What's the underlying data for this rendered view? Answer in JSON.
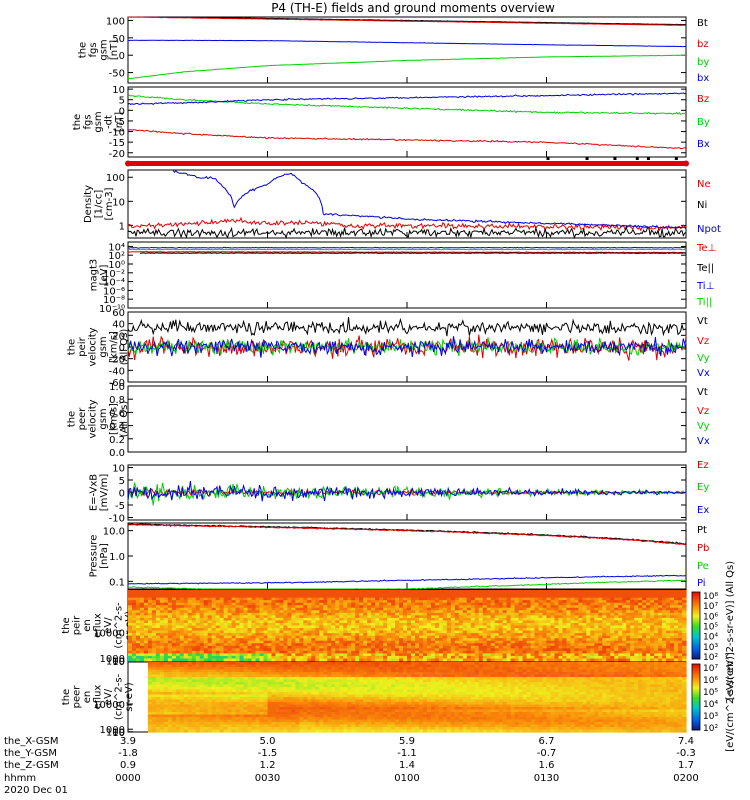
{
  "title": "P4 (TH-E) fields and ground moments overview",
  "colors": {
    "black": "#000000",
    "red": "#e00000",
    "green": "#00d000",
    "blue": "#0000e0"
  },
  "chart_data": [
    {
      "type": "line",
      "panel": "fgs_gsm_mag",
      "ylabel": [
        "the",
        "fgs",
        "gsm",
        "[nT]"
      ],
      "ylim": [
        -80,
        110
      ],
      "yticks": [
        {
          "v": 100,
          "label": "100"
        },
        {
          "v": 50,
          "label": "50"
        },
        {
          "v": 0,
          "label": "0"
        },
        {
          "v": -50,
          "label": "-50"
        }
      ],
      "series": [
        {
          "name": "Bt",
          "color": "black",
          "points": [
            [
              0,
              112
            ],
            [
              0.5,
              100
            ],
            [
              1,
              88
            ]
          ]
        },
        {
          "name": "bz",
          "color": "red",
          "points": [
            [
              0,
              110
            ],
            [
              0.5,
              98
            ],
            [
              1,
              86
            ]
          ]
        },
        {
          "name": "by",
          "color": "green",
          "points": [
            [
              0,
              -68
            ],
            [
              0.1,
              -48
            ],
            [
              0.25,
              -30
            ],
            [
              0.5,
              -15
            ],
            [
              0.75,
              -5
            ],
            [
              1,
              0
            ]
          ]
        },
        {
          "name": "bx",
          "color": "blue",
          "points": [
            [
              0,
              43
            ],
            [
              0.25,
              42
            ],
            [
              0.5,
              36
            ],
            [
              0.75,
              30
            ],
            [
              1,
              25
            ]
          ]
        }
      ]
    },
    {
      "type": "line",
      "panel": "fgs_gsm_detrended",
      "ylabel": [
        "the",
        "fgs",
        "gsm",
        "-dt",
        "[nT]"
      ],
      "ylim": [
        -22,
        11
      ],
      "yticks": [
        {
          "v": 10,
          "label": "10"
        },
        {
          "v": 5,
          "label": "5"
        },
        {
          "v": 0,
          "label": "0"
        },
        {
          "v": -5,
          "label": "-5"
        },
        {
          "v": -10,
          "label": "-10"
        },
        {
          "v": -15,
          "label": "-15"
        },
        {
          "v": -20,
          "label": "-20"
        }
      ],
      "series": [
        {
          "name": "Bz",
          "color": "red",
          "points": [
            [
              0,
              -9
            ],
            [
              0.1,
              -11
            ],
            [
              0.25,
              -13
            ],
            [
              0.5,
              -14
            ],
            [
              0.75,
              -15
            ],
            [
              1,
              -18
            ]
          ]
        },
        {
          "name": "By",
          "color": "green",
          "points": [
            [
              0,
              7
            ],
            [
              0.1,
              5
            ],
            [
              0.25,
              3
            ],
            [
              0.5,
              1
            ],
            [
              0.75,
              -1
            ],
            [
              1,
              -1.5
            ]
          ]
        },
        {
          "name": "Bx",
          "color": "blue",
          "points": [
            [
              0,
              3
            ],
            [
              0.1,
              3.5
            ],
            [
              0.25,
              5
            ],
            [
              0.5,
              6
            ],
            [
              0.75,
              7
            ],
            [
              1,
              8
            ]
          ]
        }
      ]
    },
    {
      "type": "line",
      "panel": "density",
      "log": true,
      "ylabel": [
        "Density",
        "[1/cc]",
        "[cm-3]"
      ],
      "ylim": [
        0.3,
        200
      ],
      "yticks": [
        {
          "v": 100,
          "label": "100"
        },
        {
          "v": 10,
          "label": "10"
        },
        {
          "v": 1,
          "label": "1"
        }
      ],
      "series": [
        {
          "name": "Ne",
          "color": "red",
          "points": [
            [
              0,
              0.9
            ],
            [
              0.1,
              1.1
            ],
            [
              0.2,
              1.6
            ],
            [
              0.25,
              1.2
            ],
            [
              0.3,
              1.4
            ],
            [
              0.4,
              1.0
            ],
            [
              1,
              0.8
            ]
          ]
        },
        {
          "name": "Ni",
          "color": "black",
          "points": [
            [
              0,
              0.5
            ],
            [
              0.5,
              0.5
            ],
            [
              1,
              0.5
            ]
          ]
        },
        {
          "name": "Npot",
          "color": "blue",
          "points": [
            [
              0.08,
              180
            ],
            [
              0.13,
              90
            ],
            [
              0.15,
              100
            ],
            [
              0.17,
              40
            ],
            [
              0.19,
              5
            ],
            [
              0.25,
              50
            ],
            [
              0.29,
              150
            ],
            [
              0.31,
              60
            ],
            [
              0.35,
              3
            ],
            [
              0.5,
              1.8
            ],
            [
              0.75,
              1.2
            ],
            [
              1,
              0.8
            ]
          ]
        }
      ]
    },
    {
      "type": "line",
      "panel": "temperature",
      "log": true,
      "ylabel": [
        "magt3",
        "[eV]"
      ],
      "ylim": [
        1e-10,
        100000.0
      ],
      "yticks": [
        {
          "v": 10000,
          "label": "10⁴"
        },
        {
          "v": 100,
          "label": "10²"
        },
        {
          "v": 1,
          "label": "10⁰"
        },
        {
          "v": 0.01,
          "label": "10⁻²"
        },
        {
          "v": 0.0001,
          "label": "10⁻⁴"
        },
        {
          "v": 1e-06,
          "label": "10⁻⁶"
        },
        {
          "v": 1e-08,
          "label": "10⁻⁸"
        },
        {
          "v": 1e-10,
          "label": "10⁻¹⁰"
        }
      ],
      "series": [
        {
          "name": "Te⊥",
          "color": "red",
          "points": [
            [
              0,
              600
            ],
            [
              0.5,
              500
            ],
            [
              1,
              400
            ]
          ]
        },
        {
          "name": "Te||",
          "color": "black",
          "points": [
            [
              0.02,
              300
            ],
            [
              0.5,
              300
            ],
            [
              1,
              300
            ]
          ]
        },
        {
          "name": "Ti⊥",
          "color": "blue",
          "points": [
            [
              0,
              5000
            ],
            [
              0.5,
              5000
            ],
            [
              1,
              5000
            ]
          ]
        },
        {
          "name": "Ti||",
          "color": "green",
          "points": [
            [
              0,
              2000
            ],
            [
              0.5,
              2000
            ],
            [
              1,
              2000
            ]
          ]
        }
      ]
    },
    {
      "type": "line",
      "panel": "peir_velocity",
      "ylabel": [
        "the",
        "peir",
        "velocity",
        "gsm",
        "[km/s]",
        "(All Qs)"
      ],
      "ylim": [
        -60,
        60
      ],
      "yticks": [
        {
          "v": 60,
          "label": "60"
        },
        {
          "v": 40,
          "label": "40"
        },
        {
          "v": 20,
          "label": "20"
        },
        {
          "v": 0,
          "label": "0"
        },
        {
          "v": -20,
          "label": "-20"
        },
        {
          "v": -40,
          "label": "-40"
        },
        {
          "v": -60,
          "label": "-60"
        }
      ],
      "series": [
        {
          "name": "Vt",
          "color": "black",
          "points": [
            [
              0,
              25
            ],
            [
              1,
              22
            ]
          ]
        },
        {
          "name": "Vz",
          "color": "red",
          "points": [
            [
              0,
              0
            ],
            [
              1,
              0
            ]
          ]
        },
        {
          "name": "Vy",
          "color": "green",
          "points": [
            [
              0,
              0
            ],
            [
              1,
              0
            ]
          ]
        },
        {
          "name": "Vx",
          "color": "blue",
          "points": [
            [
              0,
              0
            ],
            [
              1,
              0
            ]
          ]
        }
      ]
    },
    {
      "type": "line",
      "panel": "peer_velocity",
      "ylabel": [
        "the",
        "peer",
        "velocity",
        "gsm",
        "[km/s]",
        "(All Qs)"
      ],
      "ylim": [
        0,
        1
      ],
      "yticks": [
        {
          "v": 1,
          "label": "1.0"
        },
        {
          "v": 0.8,
          "label": "0.8"
        },
        {
          "v": 0.6,
          "label": "0.6"
        },
        {
          "v": 0.4,
          "label": "0.4"
        },
        {
          "v": 0.2,
          "label": "0.2"
        },
        {
          "v": 0,
          "label": "0.0"
        }
      ],
      "series": [
        {
          "name": "Vt",
          "color": "black",
          "points": []
        },
        {
          "name": "Vz",
          "color": "red",
          "points": []
        },
        {
          "name": "Vy",
          "color": "green",
          "points": []
        },
        {
          "name": "Vx",
          "color": "blue",
          "points": []
        }
      ]
    },
    {
      "type": "line",
      "panel": "efield",
      "ylabel": [
        "E=-VxB",
        "[mV/m]"
      ],
      "ylim": [
        -11,
        11
      ],
      "yticks": [
        {
          "v": 10,
          "label": "10"
        },
        {
          "v": 5,
          "label": "5"
        },
        {
          "v": 0,
          "label": "0"
        },
        {
          "v": -5,
          "label": "-5"
        },
        {
          "v": -10,
          "label": "-10"
        }
      ],
      "series": [
        {
          "name": "Ez",
          "color": "red",
          "points": [
            [
              0,
              0
            ],
            [
              1,
              0
            ]
          ]
        },
        {
          "name": "Ey",
          "color": "green",
          "points": [
            [
              0,
              0
            ],
            [
              1,
              0
            ]
          ]
        },
        {
          "name": "Ex",
          "color": "blue",
          "points": [
            [
              0,
              0
            ],
            [
              1,
              0
            ]
          ]
        }
      ]
    },
    {
      "type": "line",
      "panel": "pressure",
      "log": true,
      "ylabel": [
        "Pressure",
        "[nPa]"
      ],
      "ylim": [
        0.05,
        20
      ],
      "yticks": [
        {
          "v": 10,
          "label": "10.0"
        },
        {
          "v": 1,
          "label": "1.0"
        },
        {
          "v": 0.1,
          "label": "0.1"
        }
      ],
      "series": [
        {
          "name": "Pt",
          "color": "black",
          "points": [
            [
              0,
              18
            ],
            [
              1,
              3
            ]
          ]
        },
        {
          "name": "Pb",
          "color": "red",
          "points": [
            [
              0,
              17
            ],
            [
              1,
              2.8
            ]
          ]
        },
        {
          "name": "Pe",
          "color": "green",
          "points": [
            [
              0,
              0.06
            ],
            [
              0.2,
              0.045
            ],
            [
              0.5,
              0.05
            ],
            [
              0.7,
              0.07
            ],
            [
              1,
              0.11
            ]
          ]
        },
        {
          "name": "Pi",
          "color": "blue",
          "points": [
            [
              0,
              0.08
            ],
            [
              0.3,
              0.09
            ],
            [
              0.6,
              0.12
            ],
            [
              1,
              0.17
            ]
          ]
        }
      ]
    },
    {
      "type": "heatmap",
      "panel": "peir_eflux",
      "ylabel": [
        "the",
        "peir",
        "en",
        "eflux",
        "eV/",
        "(cm^2-s-",
        "sr-eV)"
      ],
      "ylim": [
        7,
        25000
      ],
      "yticks": [
        {
          "v": 10000,
          "label": "10000"
        },
        {
          "v": 1000,
          "label": "1000"
        },
        {
          "v": 100,
          "label": "100"
        },
        {
          "v": 10,
          "label": "10"
        }
      ],
      "colorbar": {
        "ticks": [
          "10⁸",
          "10⁷",
          "10⁶",
          "10⁵",
          "10⁴",
          "10³",
          "10²"
        ],
        "label": "[eV/(cm^2-s-sr-eV)] (All Qs)"
      }
    },
    {
      "type": "heatmap",
      "panel": "peer_eflux",
      "ylabel": [
        "the",
        "peer",
        "en",
        "eflux",
        "eV/",
        "(cm^2-s-",
        "sr-eV)"
      ],
      "ylim": [
        7,
        25000
      ],
      "yticks": [
        {
          "v": 10000,
          "label": "10000"
        },
        {
          "v": 1000,
          "label": "1000"
        },
        {
          "v": 100,
          "label": "100"
        },
        {
          "v": 10,
          "label": "10"
        }
      ],
      "colorbar": {
        "ticks": [
          "10⁷",
          "10⁶",
          "10⁵",
          "10⁴",
          "10³",
          "10²"
        ],
        "label": "[eV/(cm^2-s-sr-eV)]"
      }
    }
  ],
  "ephemeris": {
    "rows": [
      {
        "label": "the_X-GSM",
        "values": [
          "3.9",
          "5.0",
          "5.9",
          "6.7",
          "7.4"
        ]
      },
      {
        "label": "the_Y-GSM",
        "values": [
          "-1.8",
          "-1.5",
          "-1.1",
          "-0.7",
          "-0.3"
        ]
      },
      {
        "label": "the_Z-GSM",
        "values": [
          "0.9",
          "1.2",
          "1.4",
          "1.6",
          "1.7"
        ]
      },
      {
        "label": "hhmm",
        "values": [
          "0000",
          "0030",
          "0100",
          "0130",
          "0200"
        ]
      }
    ],
    "date": "2020 Dec 01"
  }
}
